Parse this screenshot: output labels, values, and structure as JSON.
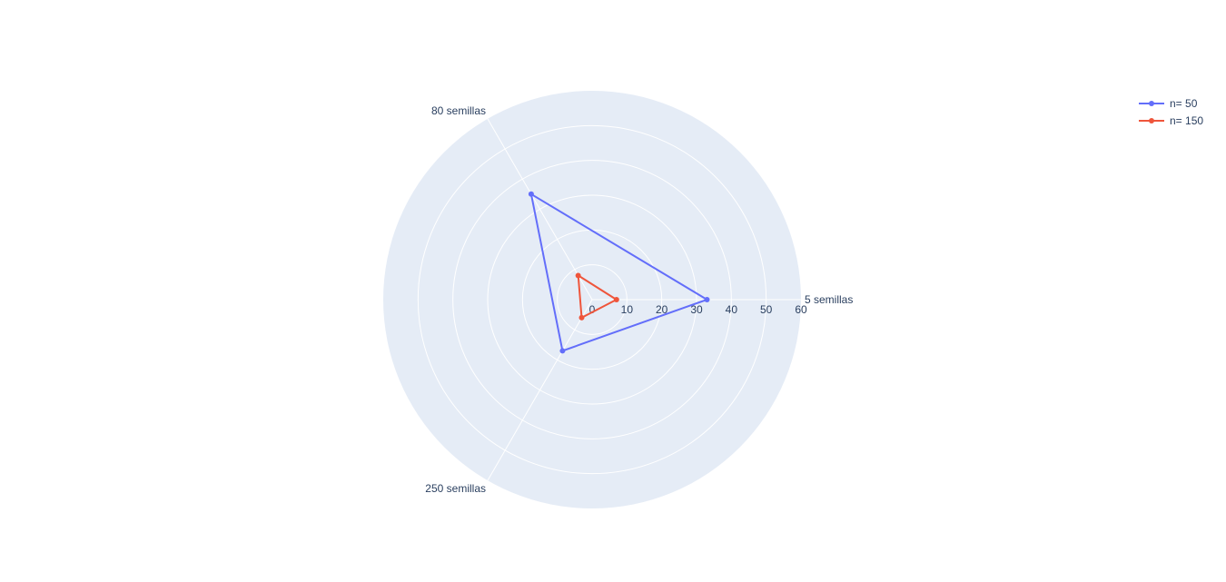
{
  "chart_data": {
    "type": "radar",
    "theta": [
      "5 semillas",
      "80 semillas",
      "250 semillas"
    ],
    "radial_range": [
      0,
      60
    ],
    "radial_ticks": [
      0,
      10,
      20,
      30,
      40,
      50,
      60
    ],
    "theta_degrees": [
      0,
      120,
      240
    ],
    "series": [
      {
        "name": "n= 50",
        "color": "#636efa",
        "r": [
          33,
          35,
          17
        ]
      },
      {
        "name": "n= 150",
        "color": "#ef553b",
        "r": [
          7,
          8,
          6
        ]
      }
    ],
    "grid": true,
    "legend_position": "top-right",
    "background_color": "#e5ecf6",
    "grid_color": "#ffffff",
    "text_color": "#2a3f5f"
  }
}
